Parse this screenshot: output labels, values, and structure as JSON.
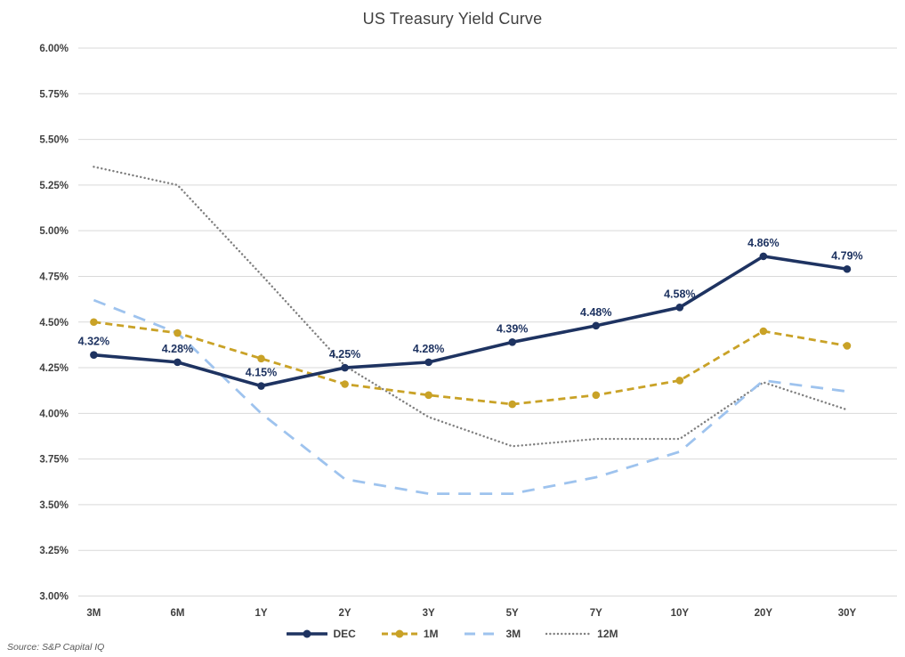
{
  "title": "US Treasury Yield Curve",
  "source": "Source: S&P Capital IQ",
  "colors": {
    "background": "#ffffff",
    "gridline": "#d9d9d9",
    "axis_text": "#404040",
    "title_text": "#404040",
    "source_text": "#595959",
    "data_label_text": "#1e3361"
  },
  "legend": {
    "position": "bottom",
    "items": [
      {
        "label": "DEC"
      },
      {
        "label": "1M"
      },
      {
        "label": "3M"
      },
      {
        "label": "12M"
      }
    ]
  },
  "chart_data": {
    "type": "line",
    "title": "US Treasury Yield Curve",
    "categories": [
      "3M",
      "6M",
      "1Y",
      "2Y",
      "3Y",
      "5Y",
      "7Y",
      "10Y",
      "20Y",
      "30Y"
    ],
    "series": [
      {
        "name": "DEC",
        "color": "#1e3361",
        "style": "solid",
        "markers": true,
        "values": [
          4.32,
          4.28,
          4.15,
          4.25,
          4.28,
          4.39,
          4.48,
          4.58,
          4.86,
          4.79
        ],
        "data_labels": [
          "4.32%",
          "4.28%",
          "4.15%",
          "4.25%",
          "4.28%",
          "4.39%",
          "4.48%",
          "4.58%",
          "4.86%",
          "4.79%"
        ]
      },
      {
        "name": "1M",
        "color": "#c9a227",
        "style": "dashed",
        "markers": true,
        "values": [
          4.5,
          4.44,
          4.3,
          4.16,
          4.1,
          4.05,
          4.1,
          4.18,
          4.45,
          4.37
        ]
      },
      {
        "name": "3M",
        "color": "#9ec3ee",
        "style": "long-dash",
        "markers": false,
        "values": [
          4.62,
          4.44,
          4.0,
          3.64,
          3.56,
          3.56,
          3.65,
          3.79,
          4.18,
          4.12
        ]
      },
      {
        "name": "12M",
        "color": "#7f7f7f",
        "style": "dotted",
        "markers": false,
        "values": [
          5.35,
          5.25,
          4.76,
          4.26,
          3.98,
          3.82,
          3.86,
          3.86,
          4.17,
          4.02
        ]
      }
    ],
    "xlabel": "",
    "ylabel": "",
    "ylim": [
      3.0,
      6.0
    ],
    "ytick_step": 0.25,
    "ytick_format": "0.00%",
    "grid": true,
    "legend_position": "bottom"
  }
}
